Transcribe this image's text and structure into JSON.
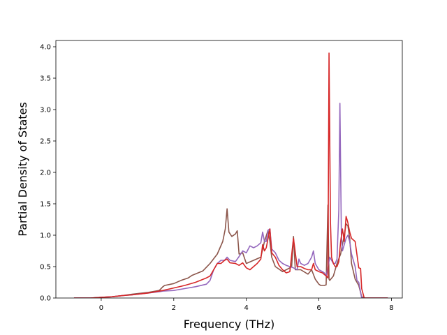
{
  "chart_data": {
    "type": "line",
    "title": "",
    "xlabel": "Frequency (THz)",
    "ylabel": "Partial Density of States",
    "xlim": [
      -1.25,
      8.3
    ],
    "ylim": [
      0.0,
      4.1
    ],
    "xticks": [
      0,
      2,
      4,
      6,
      8
    ],
    "yticks": [
      0.0,
      0.5,
      1.0,
      1.5,
      2.0,
      2.5,
      3.0,
      3.5,
      4.0
    ],
    "xtick_labels": [
      "0",
      "2",
      "4",
      "6",
      "8"
    ],
    "ytick_labels": [
      "0.0",
      "0.5",
      "1.0",
      "1.5",
      "2.0",
      "2.5",
      "3.0",
      "3.5",
      "4.0"
    ],
    "grid": false,
    "legend": null,
    "series": [
      {
        "color": "#8c564b",
        "x": [
          -0.75,
          -0.3,
          0.0,
          0.3,
          0.6,
          0.85,
          1.0,
          1.3,
          1.6,
          1.7,
          1.75,
          2.0,
          2.2,
          2.4,
          2.5,
          2.8,
          3.0,
          3.2,
          3.35,
          3.42,
          3.47,
          3.52,
          3.6,
          3.7,
          3.75,
          3.8,
          3.9,
          4.0,
          4.2,
          4.4,
          4.5,
          4.6,
          4.65,
          4.7,
          4.8,
          5.0,
          5.1,
          5.2,
          5.25,
          5.3,
          5.35,
          5.5,
          5.7,
          5.8,
          5.9,
          6.0,
          6.05,
          6.15,
          6.2,
          6.25,
          6.28,
          6.3,
          6.4,
          6.5,
          6.6,
          6.7,
          6.75,
          6.8,
          6.85,
          6.9,
          7.0,
          7.1,
          7.18,
          7.25,
          7.5,
          7.9
        ],
        "y": [
          0.0,
          0.0,
          0.01,
          0.02,
          0.04,
          0.06,
          0.07,
          0.09,
          0.12,
          0.18,
          0.2,
          0.23,
          0.28,
          0.32,
          0.36,
          0.43,
          0.55,
          0.7,
          0.9,
          1.1,
          1.42,
          1.05,
          0.98,
          1.02,
          1.07,
          0.7,
          0.72,
          0.55,
          0.6,
          0.65,
          0.9,
          1.08,
          0.9,
          0.65,
          0.5,
          0.42,
          0.45,
          0.48,
          0.5,
          0.98,
          0.45,
          0.45,
          0.38,
          0.45,
          0.3,
          0.22,
          0.2,
          0.2,
          0.21,
          1.48,
          0.3,
          0.28,
          0.35,
          0.55,
          0.7,
          1.0,
          1.18,
          1.15,
          0.95,
          0.55,
          0.3,
          0.2,
          0.02,
          0.0,
          0.0,
          0.0
        ]
      },
      {
        "color": "#9467bd",
        "x": [
          -0.75,
          -0.3,
          0.0,
          0.3,
          0.6,
          0.85,
          1.0,
          1.3,
          1.6,
          1.7,
          2.0,
          2.3,
          2.6,
          2.9,
          3.0,
          3.1,
          3.2,
          3.3,
          3.4,
          3.47,
          3.55,
          3.7,
          3.8,
          3.9,
          4.0,
          4.1,
          4.2,
          4.3,
          4.4,
          4.45,
          4.5,
          4.55,
          4.6,
          4.65,
          4.7,
          4.8,
          4.9,
          5.0,
          5.1,
          5.2,
          5.3,
          5.4,
          5.45,
          5.5,
          5.6,
          5.7,
          5.8,
          5.85,
          5.9,
          6.0,
          6.1,
          6.15,
          6.2,
          6.22,
          6.3,
          6.35,
          6.4,
          6.45,
          6.5,
          6.55,
          6.58,
          6.62,
          6.65,
          6.7,
          6.75,
          6.8,
          6.85,
          6.9,
          7.0,
          7.05,
          7.1,
          7.18,
          7.25,
          7.5,
          7.9
        ],
        "y": [
          0.0,
          0.0,
          0.01,
          0.02,
          0.04,
          0.05,
          0.06,
          0.08,
          0.1,
          0.11,
          0.12,
          0.15,
          0.18,
          0.22,
          0.28,
          0.45,
          0.55,
          0.6,
          0.6,
          0.65,
          0.6,
          0.58,
          0.66,
          0.75,
          0.72,
          0.83,
          0.8,
          0.83,
          0.88,
          1.05,
          0.9,
          0.9,
          1.08,
          1.1,
          0.78,
          0.72,
          0.6,
          0.55,
          0.52,
          0.5,
          0.48,
          0.45,
          0.62,
          0.55,
          0.52,
          0.55,
          0.65,
          0.75,
          0.55,
          0.45,
          0.42,
          0.4,
          0.35,
          0.4,
          0.65,
          0.6,
          0.55,
          0.55,
          0.62,
          1.4,
          3.1,
          1.0,
          0.75,
          0.85,
          0.95,
          1.0,
          0.9,
          0.7,
          0.5,
          0.28,
          0.25,
          0.0,
          0.0,
          0.0,
          0.0
        ]
      },
      {
        "color": "#d62728",
        "x": [
          -0.75,
          -0.3,
          0.0,
          0.3,
          0.6,
          0.85,
          1.0,
          1.3,
          1.6,
          1.7,
          2.0,
          2.3,
          2.6,
          2.9,
          3.0,
          3.1,
          3.2,
          3.3,
          3.4,
          3.47,
          3.55,
          3.7,
          3.8,
          3.9,
          4.0,
          4.1,
          4.2,
          4.3,
          4.4,
          4.45,
          4.5,
          4.55,
          4.6,
          4.65,
          4.7,
          4.8,
          4.9,
          5.0,
          5.1,
          5.2,
          5.3,
          5.4,
          5.5,
          5.6,
          5.7,
          5.8,
          5.85,
          5.9,
          6.0,
          6.1,
          6.2,
          6.25,
          6.28,
          6.32,
          6.35,
          6.4,
          6.45,
          6.5,
          6.55,
          6.6,
          6.65,
          6.7,
          6.75,
          6.8,
          6.85,
          6.9,
          7.0,
          7.1,
          7.15,
          7.18,
          7.25,
          7.5,
          7.9
        ],
        "y": [
          0.0,
          0.0,
          0.01,
          0.02,
          0.04,
          0.05,
          0.06,
          0.08,
          0.11,
          0.12,
          0.16,
          0.2,
          0.25,
          0.32,
          0.35,
          0.45,
          0.55,
          0.55,
          0.6,
          0.62,
          0.56,
          0.55,
          0.52,
          0.56,
          0.48,
          0.45,
          0.5,
          0.55,
          0.62,
          0.85,
          0.75,
          0.8,
          0.95,
          1.1,
          0.72,
          0.65,
          0.52,
          0.45,
          0.4,
          0.42,
          0.95,
          0.5,
          0.5,
          0.47,
          0.45,
          0.45,
          0.55,
          0.45,
          0.42,
          0.4,
          0.35,
          0.32,
          3.9,
          1.2,
          0.65,
          0.55,
          0.5,
          0.5,
          0.58,
          0.9,
          1.1,
          0.9,
          1.3,
          1.2,
          1.05,
          0.95,
          0.9,
          0.48,
          0.47,
          0.15,
          0.0,
          0.0,
          0.0
        ]
      }
    ]
  }
}
